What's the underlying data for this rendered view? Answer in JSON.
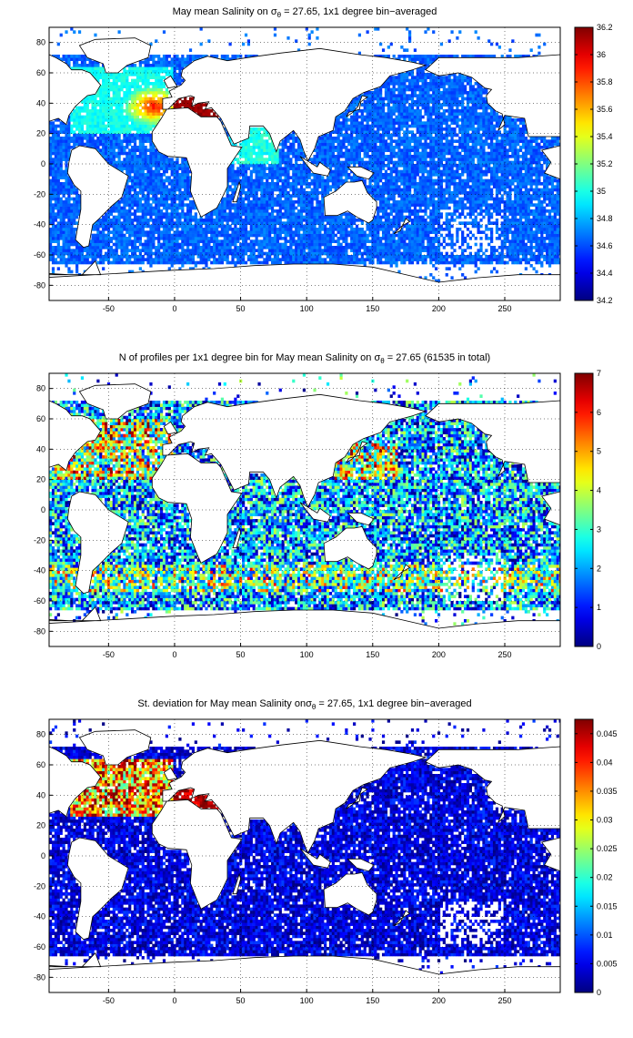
{
  "panels": [
    {
      "id": "salinity",
      "title_pre": "May mean Salinity on σ",
      "title_sub": "θ",
      "title_post": " = 27.65, 1x1 degree bin−averaged",
      "colorbar": {
        "min": 34.2,
        "max": 36.2,
        "ticks": [
          "34.2",
          "34.4",
          "34.6",
          "34.8",
          "35",
          "35.2",
          "35.4",
          "35.6",
          "35.8",
          "36",
          "36.2"
        ]
      },
      "colorscale": "jet"
    },
    {
      "id": "count",
      "title_pre": "N of profiles per 1x1 degree bin for May mean Salinity on σ",
      "title_sub": "θ",
      "title_post": " = 27.65 (61535 in total)",
      "colorbar": {
        "min": 0,
        "max": 7,
        "ticks": [
          "0",
          "1",
          "2",
          "3",
          "4",
          "5",
          "6",
          "7"
        ]
      },
      "colorscale": "jet"
    },
    {
      "id": "stdev",
      "title_pre": "St. deviation for May mean Salinity onσ",
      "title_sub": "θ",
      "title_post": " = 27.65, 1x1 degree bin−averaged",
      "colorbar": {
        "min": 0,
        "max": 0.0475,
        "ticks": [
          "0",
          "0.005",
          "0.01",
          "0.015",
          "0.02",
          "0.025",
          "0.03",
          "0.035",
          "0.04",
          "0.045"
        ]
      },
      "colorscale": "jet"
    }
  ],
  "map_axes": {
    "x_ticks": [
      "-50",
      "0",
      "50",
      "100",
      "150",
      "200",
      "250"
    ],
    "y_ticks": [
      "80",
      "60",
      "40",
      "20",
      "0",
      "-20",
      "-40",
      "-60",
      "-80"
    ],
    "xlim": [
      -95,
      292
    ],
    "ylim": [
      -90,
      90
    ],
    "grid": "dotted"
  },
  "colors": {
    "land": "#ffffff",
    "coast": "#000000",
    "gap": "#ffffff"
  }
}
